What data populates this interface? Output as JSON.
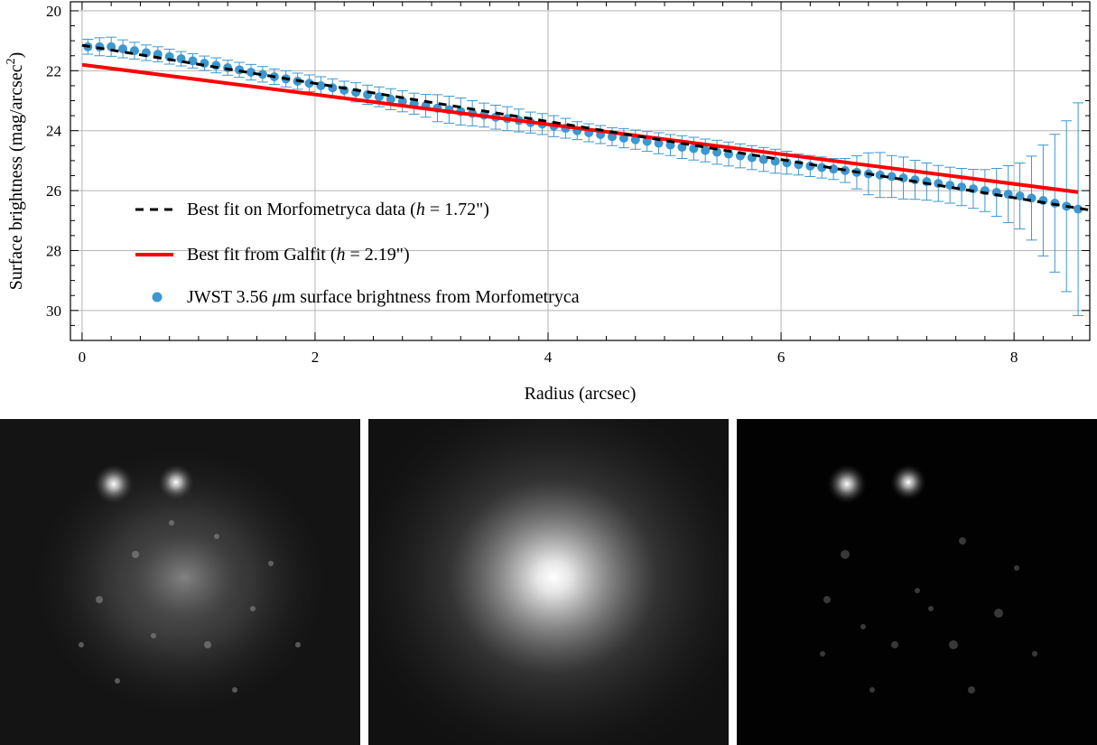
{
  "chart_data": {
    "type": "scatter",
    "xlabel": "Radius (arcsec)",
    "ylabel": "Surface brightness (mag/arcsec²)",
    "xlim": [
      -0.1,
      8.65
    ],
    "ylim": [
      31.0,
      19.7
    ],
    "y_inverted": true,
    "grid": true,
    "legend_position": "lower-left",
    "xticks": [
      "0",
      "2",
      "4",
      "6",
      "8"
    ],
    "yticks": [
      "20",
      "22",
      "24",
      "26",
      "28",
      "30"
    ],
    "series": [
      {
        "name": "Best fit on Morfometryca data (h = 1.72\")",
        "kind": "line",
        "style": "dashed",
        "color": "#000000",
        "x": [
          0,
          8.65
        ],
        "y": [
          21.15,
          26.65
        ]
      },
      {
        "name": "Best fit from Galfit (h = 2.19\")",
        "kind": "line",
        "style": "solid",
        "color": "#ff0000",
        "x": [
          0,
          8.55
        ],
        "y": [
          21.8,
          26.05
        ]
      },
      {
        "name": "JWST 3.56 μm surface brightness from Morfometryca",
        "kind": "scatter-errorbar",
        "color": "#3d97d0",
        "x": [
          0.05,
          0.15,
          0.25,
          0.35,
          0.45,
          0.55,
          0.65,
          0.75,
          0.85,
          0.95,
          1.05,
          1.15,
          1.25,
          1.35,
          1.45,
          1.55,
          1.65,
          1.75,
          1.85,
          1.95,
          2.05,
          2.15,
          2.25,
          2.35,
          2.45,
          2.55,
          2.65,
          2.75,
          2.85,
          2.95,
          3.05,
          3.15,
          3.25,
          3.35,
          3.45,
          3.55,
          3.65,
          3.75,
          3.85,
          3.95,
          4.05,
          4.15,
          4.25,
          4.35,
          4.45,
          4.55,
          4.65,
          4.75,
          4.85,
          4.95,
          5.05,
          5.15,
          5.25,
          5.35,
          5.45,
          5.55,
          5.65,
          5.75,
          5.85,
          5.95,
          6.05,
          6.15,
          6.25,
          6.35,
          6.45,
          6.55,
          6.65,
          6.75,
          6.85,
          6.95,
          7.05,
          7.15,
          7.25,
          7.35,
          7.45,
          7.55,
          7.65,
          7.75,
          7.85,
          7.95,
          8.05,
          8.15,
          8.25,
          8.35,
          8.45,
          8.55
        ],
        "y": [
          21.2,
          21.2,
          21.2,
          21.27,
          21.33,
          21.4,
          21.45,
          21.53,
          21.6,
          21.67,
          21.75,
          21.82,
          21.9,
          21.97,
          22.05,
          22.12,
          22.2,
          22.27,
          22.35,
          22.42,
          22.5,
          22.57,
          22.65,
          22.72,
          22.8,
          22.87,
          22.95,
          23.02,
          23.1,
          23.17,
          23.25,
          23.3,
          23.36,
          23.42,
          23.48,
          23.55,
          23.6,
          23.66,
          23.73,
          23.78,
          23.85,
          23.92,
          24.0,
          24.07,
          24.13,
          24.2,
          24.25,
          24.3,
          24.36,
          24.42,
          24.48,
          24.55,
          24.6,
          24.66,
          24.72,
          24.78,
          24.84,
          24.9,
          24.96,
          25.02,
          25.07,
          25.13,
          25.18,
          25.23,
          25.28,
          25.33,
          25.39,
          25.44,
          25.48,
          25.53,
          25.58,
          25.64,
          25.7,
          25.76,
          25.82,
          25.88,
          25.94,
          26.0,
          26.06,
          26.12,
          26.18,
          26.25,
          26.33,
          26.42,
          26.52,
          26.62
        ],
        "yerr": [
          0.25,
          0.3,
          0.32,
          0.3,
          0.28,
          0.26,
          0.25,
          0.25,
          0.24,
          0.24,
          0.24,
          0.25,
          0.25,
          0.25,
          0.26,
          0.26,
          0.26,
          0.27,
          0.27,
          0.28,
          0.3,
          0.3,
          0.3,
          0.32,
          0.32,
          0.33,
          0.35,
          0.35,
          0.35,
          0.38,
          0.45,
          0.45,
          0.45,
          0.42,
          0.4,
          0.4,
          0.4,
          0.38,
          0.35,
          0.35,
          0.35,
          0.33,
          0.3,
          0.3,
          0.3,
          0.3,
          0.32,
          0.32,
          0.33,
          0.35,
          0.35,
          0.38,
          0.38,
          0.38,
          0.4,
          0.4,
          0.4,
          0.4,
          0.4,
          0.4,
          0.38,
          0.35,
          0.35,
          0.35,
          0.35,
          0.4,
          0.55,
          0.7,
          0.75,
          0.7,
          0.7,
          0.65,
          0.62,
          0.6,
          0.6,
          0.62,
          0.65,
          0.7,
          0.8,
          0.95,
          1.1,
          1.4,
          1.85,
          2.3,
          2.85,
          3.55
        ]
      }
    ],
    "legend": [
      {
        "label_pre": "Best fit on Morfometryca data (",
        "italic": "h",
        "label_post": " = 1.72\")",
        "marker": "dash",
        "color": "#000000"
      },
      {
        "label_pre": "Best fit from Galfit (",
        "italic": "h",
        "label_post": " = 2.19\")",
        "marker": "solid",
        "color": "#ff0000"
      },
      {
        "label_pre": "JWST 3.56 ",
        "italic": "μ",
        "label_post": "m surface brightness from Morfometryca",
        "marker": "dot",
        "color": "#3d97d0"
      }
    ]
  },
  "images": [
    {
      "name": "observed-galaxy-image",
      "style": "grayscale"
    },
    {
      "name": "galfit-model-image",
      "style": "grayscale"
    },
    {
      "name": "residual-image",
      "style": "grayscale"
    }
  ]
}
